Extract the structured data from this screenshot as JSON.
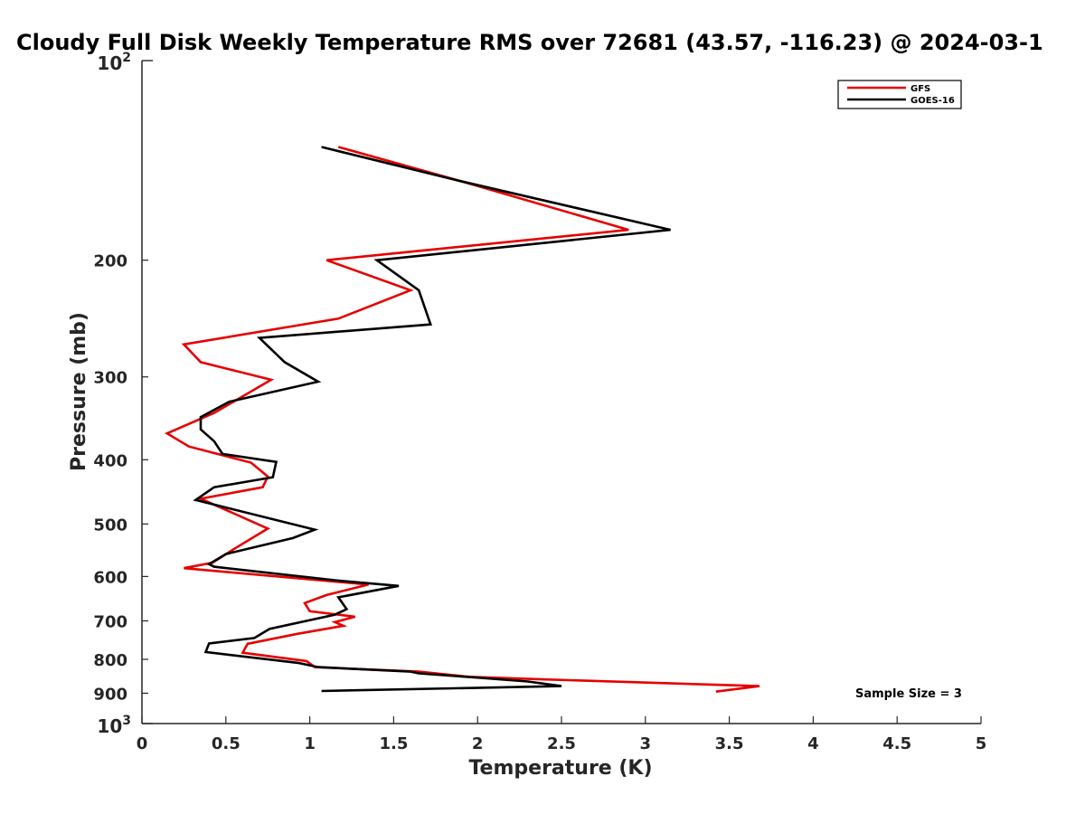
{
  "chart_data": {
    "type": "line",
    "title": "Cloudy Full Disk Weekly Temperature RMS over 72681 (43.57, -116.23) @ 2024-03-1",
    "xlabel": "Temperature (K)",
    "ylabel": "Pressure (mb)",
    "xlim": [
      0,
      5
    ],
    "ylim": [
      100,
      1000
    ],
    "y_scale": "log",
    "y_reversed": true,
    "x_ticks": [
      "0",
      "0.5",
      "1",
      "1.5",
      "2",
      "2.5",
      "3",
      "3.5",
      "4",
      "4.5",
      "5"
    ],
    "y_ticks_major": {
      "100": [
        "10",
        "2"
      ],
      "1000": [
        "10",
        "3"
      ]
    },
    "y_ticks_minor": [
      "200",
      "300",
      "400",
      "500",
      "600",
      "700",
      "800",
      "900"
    ],
    "legend_position": "top-right",
    "annotation": "Sample Size = 3",
    "colors": {
      "GFS": "#e60000",
      "GOES-16": "#000000"
    },
    "series": [
      {
        "name": "GFS",
        "points": [
          [
            1.17,
            135
          ],
          [
            1.9,
            152
          ],
          [
            2.9,
            180
          ],
          [
            1.1,
            200
          ],
          [
            1.6,
            222
          ],
          [
            1.17,
            245
          ],
          [
            0.25,
            268
          ],
          [
            0.35,
            285
          ],
          [
            0.77,
            303
          ],
          [
            0.43,
            340
          ],
          [
            0.15,
            365
          ],
          [
            0.28,
            382
          ],
          [
            0.65,
            404
          ],
          [
            0.75,
            424
          ],
          [
            0.72,
            440
          ],
          [
            0.35,
            458
          ],
          [
            0.75,
            508
          ],
          [
            0.55,
            545
          ],
          [
            0.42,
            572
          ],
          [
            0.25,
            583
          ],
          [
            1.35,
            617
          ],
          [
            1.1,
            640
          ],
          [
            0.97,
            658
          ],
          [
            1.0,
            677
          ],
          [
            1.27,
            690
          ],
          [
            1.15,
            703
          ],
          [
            1.2,
            712
          ],
          [
            0.93,
            732
          ],
          [
            0.63,
            758
          ],
          [
            0.6,
            782
          ],
          [
            0.98,
            805
          ],
          [
            1.03,
            822
          ],
          [
            1.65,
            835
          ],
          [
            1.95,
            850
          ],
          [
            2.4,
            858
          ],
          [
            3.68,
            878
          ],
          [
            3.42,
            895
          ]
        ]
      },
      {
        "name": "GOES-16",
        "points": [
          [
            1.07,
            135
          ],
          [
            1.9,
            152
          ],
          [
            3.15,
            180
          ],
          [
            1.4,
            200
          ],
          [
            1.65,
            222
          ],
          [
            1.72,
            250
          ],
          [
            0.7,
            262
          ],
          [
            0.85,
            285
          ],
          [
            1.05,
            305
          ],
          [
            0.52,
            327
          ],
          [
            0.35,
            345
          ],
          [
            0.35,
            360
          ],
          [
            0.43,
            375
          ],
          [
            0.48,
            392
          ],
          [
            0.8,
            403
          ],
          [
            0.78,
            425
          ],
          [
            0.43,
            440
          ],
          [
            0.32,
            460
          ],
          [
            1.03,
            510
          ],
          [
            0.9,
            525
          ],
          [
            0.5,
            555
          ],
          [
            0.4,
            575
          ],
          [
            0.43,
            580
          ],
          [
            1.15,
            608
          ],
          [
            1.53,
            620
          ],
          [
            1.17,
            645
          ],
          [
            1.22,
            672
          ],
          [
            1.15,
            685
          ],
          [
            0.76,
            720
          ],
          [
            0.67,
            743
          ],
          [
            0.4,
            757
          ],
          [
            0.38,
            780
          ],
          [
            0.93,
            810
          ],
          [
            1.05,
            822
          ],
          [
            1.6,
            835
          ],
          [
            1.65,
            840
          ],
          [
            1.98,
            852
          ],
          [
            2.3,
            864
          ],
          [
            2.5,
            878
          ],
          [
            1.07,
            893
          ]
        ]
      }
    ]
  }
}
